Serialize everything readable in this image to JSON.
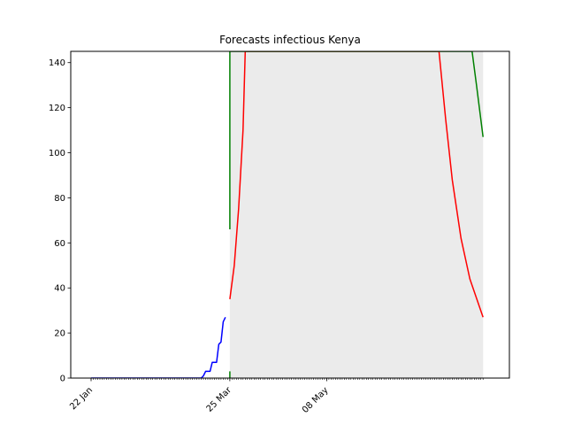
{
  "chart_data": {
    "type": "line",
    "title": "Forecasts infectious Kenya",
    "xlabel": "",
    "ylabel": "",
    "x_range": [
      "2020-01-22",
      "2020-07-18"
    ],
    "ylim": [
      0,
      145
    ],
    "y_ticks": [
      0,
      20,
      40,
      60,
      80,
      100,
      120,
      140
    ],
    "x_ticks": [
      {
        "date": "2020-01-22",
        "label": "22 Jan"
      },
      {
        "date": "2020-03-25",
        "label": "25 Mar"
      },
      {
        "date": "2020-05-08",
        "label": "08 May"
      }
    ],
    "forecast_start": "2020-03-25",
    "forecast_end": "2020-07-18",
    "grid": false,
    "legend": "none",
    "series": [
      {
        "color": "#0000ff",
        "role": "observed",
        "points": [
          [
            "2020-01-22",
            0
          ],
          [
            "2020-03-12",
            0
          ],
          [
            "2020-03-13",
            1
          ],
          [
            "2020-03-14",
            3
          ],
          [
            "2020-03-16",
            3
          ],
          [
            "2020-03-17",
            7
          ],
          [
            "2020-03-19",
            7
          ],
          [
            "2020-03-20",
            15
          ],
          [
            "2020-03-21",
            16
          ],
          [
            "2020-03-22",
            25
          ],
          [
            "2020-03-23",
            27
          ]
        ]
      },
      {
        "color": "#ff0000",
        "role": "forecast median",
        "points": [
          [
            "2020-03-25",
            35
          ],
          [
            "2020-03-27",
            50
          ],
          [
            "2020-03-29",
            75
          ],
          [
            "2020-03-31",
            110
          ],
          [
            "2020-04-01",
            145
          ],
          [
            "2020-06-28",
            145
          ],
          [
            "2020-07-01",
            115
          ],
          [
            "2020-07-04",
            88
          ],
          [
            "2020-07-08",
            62
          ],
          [
            "2020-07-12",
            44
          ],
          [
            "2020-07-18",
            27
          ]
        ]
      },
      {
        "color": "#008000",
        "role": "forecast upper",
        "points": [
          [
            "2020-03-25",
            66
          ],
          [
            "2020-03-25",
            145
          ],
          [
            "2020-07-13",
            145
          ],
          [
            "2020-07-15",
            130
          ],
          [
            "2020-07-18",
            107
          ]
        ]
      },
      {
        "color": "#008000",
        "role": "forecast lower",
        "points": [
          [
            "2020-03-25",
            0
          ],
          [
            "2020-03-25",
            3
          ]
        ]
      }
    ]
  }
}
